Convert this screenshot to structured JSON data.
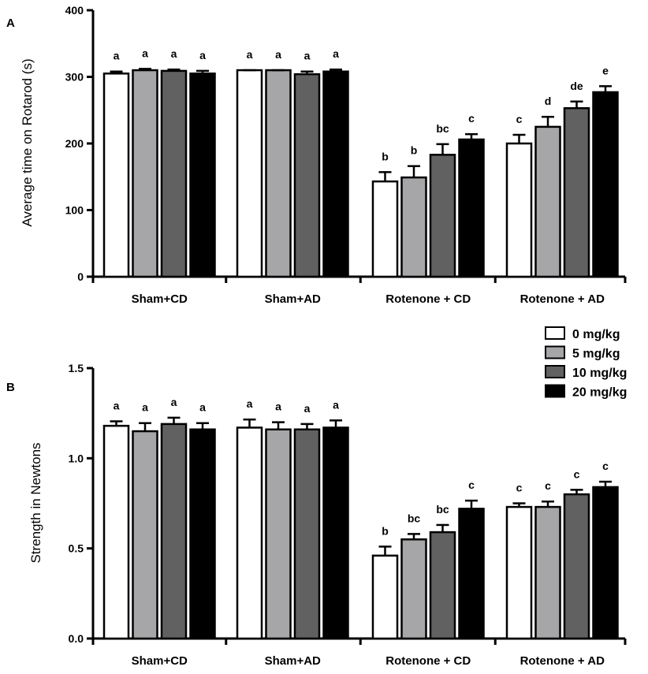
{
  "chart_data": [
    {
      "panel": "A",
      "type": "bar",
      "ylabel": "Average time on Rotarod (s)",
      "ylim": [
        0,
        400
      ],
      "yticks": [
        "0",
        "100",
        "200",
        "300",
        "400"
      ],
      "ytick_values": [
        0,
        100,
        200,
        300,
        400
      ],
      "categories": [
        "Sham+CD",
        "Sham+AD",
        "Rotenone + CD",
        "Rotenone + AD"
      ],
      "series": [
        {
          "name": "0 mg/kg",
          "color": "#ffffff",
          "values": [
            305,
            310,
            143,
            200
          ],
          "errors": [
            3,
            0,
            14,
            13
          ],
          "labels": [
            "a",
            "a",
            "b",
            "c"
          ]
        },
        {
          "name": "5 mg/kg",
          "color": "#a6a6a8",
          "values": [
            310,
            310,
            149,
            225
          ],
          "errors": [
            2,
            0,
            17,
            15
          ],
          "labels": [
            "a",
            "a",
            "b",
            "d"
          ]
        },
        {
          "name": "10 mg/kg",
          "color": "#616161",
          "values": [
            309,
            304,
            183,
            253
          ],
          "errors": [
            2,
            4,
            16,
            10
          ],
          "labels": [
            "a",
            "a",
            "bc",
            "de"
          ]
        },
        {
          "name": "20 mg/kg",
          "color": "#000000",
          "values": [
            305,
            308,
            206,
            277
          ],
          "errors": [
            4,
            3,
            8,
            9
          ],
          "labels": [
            "a",
            "a",
            "c",
            "e"
          ]
        }
      ]
    },
    {
      "panel": "B",
      "type": "bar",
      "ylabel": "Strength in Newtons",
      "ylim": [
        0,
        1.5
      ],
      "yticks": [
        "0.0",
        "0.5",
        "1.0",
        "1.5"
      ],
      "ytick_values": [
        0,
        0.5,
        1.0,
        1.5
      ],
      "categories": [
        "Sham+CD",
        "Sham+AD",
        "Rotenone + CD",
        "Rotenone + AD"
      ],
      "series": [
        {
          "name": "0 mg/kg",
          "color": "#ffffff",
          "values": [
            1.18,
            1.17,
            0.46,
            0.73
          ],
          "errors": [
            0.025,
            0.045,
            0.05,
            0.02
          ],
          "labels": [
            "a",
            "a",
            "b",
            "c"
          ]
        },
        {
          "name": "5 mg/kg",
          "color": "#a6a6a8",
          "values": [
            1.15,
            1.16,
            0.55,
            0.73
          ],
          "errors": [
            0.045,
            0.04,
            0.03,
            0.03
          ],
          "labels": [
            "a",
            "a",
            "bc",
            "c"
          ]
        },
        {
          "name": "10 mg/kg",
          "color": "#616161",
          "values": [
            1.19,
            1.16,
            0.59,
            0.8
          ],
          "errors": [
            0.035,
            0.03,
            0.04,
            0.025
          ],
          "labels": [
            "a",
            "a",
            "bc",
            "c"
          ]
        },
        {
          "name": "20 mg/kg",
          "color": "#000000",
          "values": [
            1.16,
            1.17,
            0.72,
            0.84
          ],
          "errors": [
            0.035,
            0.04,
            0.045,
            0.03
          ],
          "labels": [
            "a",
            "a",
            "c",
            "c"
          ]
        }
      ]
    }
  ],
  "legend": [
    "0 mg/kg",
    "5 mg/kg",
    "10 mg/kg",
    "20 mg/kg"
  ]
}
